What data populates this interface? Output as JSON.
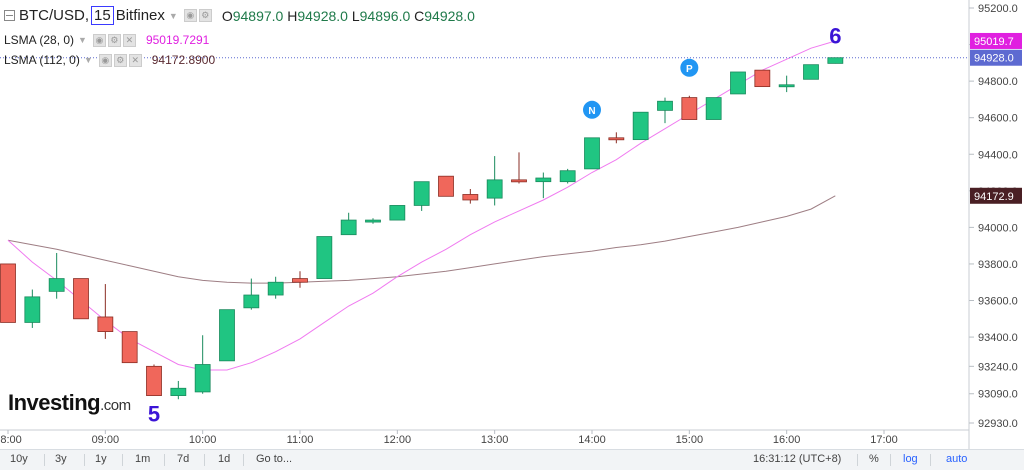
{
  "legend": {
    "symbol": "BTC/USD,",
    "interval": "15",
    "exchange": "Bitfinex",
    "o_label": "O",
    "o_val": "94897.0",
    "h_label": "H",
    "h_val": "94928.0",
    "l_label": "L",
    "l_val": "94896.0",
    "c_label": "C",
    "c_val": "94928.0",
    "lsma1_label": "LSMA (28, 0)",
    "lsma1_val": "95019.7291",
    "lsma2_label": "LSMA (112, 0)",
    "lsma2_val": "94172.8900"
  },
  "chart_data": {
    "type": "candlestick",
    "x_ticks": [
      "08:00",
      "09:00",
      "10:00",
      "11:00",
      "12:00",
      "13:00",
      "14:00",
      "15:00",
      "16:00",
      "17:00"
    ],
    "y_ticks": [
      "95200.0",
      "95000.0",
      "94800.0",
      "94600.0",
      "94400.0",
      "94200.0",
      "94000.0",
      "93800.0",
      "93600.0",
      "93400.0",
      "93240.0",
      "93090.0",
      "92930.0"
    ],
    "y_tick_values": [
      95200,
      95000,
      94800,
      94600,
      94400,
      94200,
      94000,
      93800,
      93600,
      93400,
      93240,
      93090,
      92930
    ],
    "ylim": [
      92930,
      95200
    ],
    "candles": [
      {
        "o": 93800,
        "h": 93800,
        "l": 93480,
        "c": 93480
      },
      {
        "o": 93480,
        "h": 93660,
        "l": 93450,
        "c": 93620
      },
      {
        "o": 93650,
        "h": 93860,
        "l": 93610,
        "c": 93720
      },
      {
        "o": 93720,
        "h": 93720,
        "l": 93500,
        "c": 93500
      },
      {
        "o": 93510,
        "h": 93690,
        "l": 93390,
        "c": 93430
      },
      {
        "o": 93430,
        "h": 93430,
        "l": 93260,
        "c": 93260
      },
      {
        "o": 93240,
        "h": 93250,
        "l": 93080,
        "c": 93080
      },
      {
        "o": 93080,
        "h": 93160,
        "l": 93060,
        "c": 93120
      },
      {
        "o": 93100,
        "h": 93410,
        "l": 93090,
        "c": 93250
      },
      {
        "o": 93270,
        "h": 93550,
        "l": 93270,
        "c": 93550
      },
      {
        "o": 93560,
        "h": 93720,
        "l": 93550,
        "c": 93630
      },
      {
        "o": 93630,
        "h": 93730,
        "l": 93610,
        "c": 93700
      },
      {
        "o": 93720,
        "h": 93760,
        "l": 93670,
        "c": 93700
      },
      {
        "o": 93720,
        "h": 93950,
        "l": 93720,
        "c": 93950
      },
      {
        "o": 93960,
        "h": 94080,
        "l": 93960,
        "c": 94040
      },
      {
        "o": 94040,
        "h": 94050,
        "l": 94020,
        "c": 94040
      },
      {
        "o": 94040,
        "h": 94120,
        "l": 94040,
        "c": 94120
      },
      {
        "o": 94120,
        "h": 94250,
        "l": 94090,
        "c": 94250
      },
      {
        "o": 94280,
        "h": 94280,
        "l": 94170,
        "c": 94170
      },
      {
        "o": 94180,
        "h": 94210,
        "l": 94130,
        "c": 94150
      },
      {
        "o": 94160,
        "h": 94390,
        "l": 94120,
        "c": 94260
      },
      {
        "o": 94260,
        "h": 94410,
        "l": 94240,
        "c": 94250
      },
      {
        "o": 94250,
        "h": 94300,
        "l": 94160,
        "c": 94270
      },
      {
        "o": 94250,
        "h": 94320,
        "l": 94240,
        "c": 94310
      },
      {
        "o": 94320,
        "h": 94490,
        "l": 94320,
        "c": 94490
      },
      {
        "o": 94490,
        "h": 94520,
        "l": 94460,
        "c": 94480
      },
      {
        "o": 94480,
        "h": 94630,
        "l": 94480,
        "c": 94630
      },
      {
        "o": 94640,
        "h": 94710,
        "l": 94570,
        "c": 94690
      },
      {
        "o": 94710,
        "h": 94720,
        "l": 94590,
        "c": 94590
      },
      {
        "o": 94590,
        "h": 94710,
        "l": 94590,
        "c": 94710
      },
      {
        "o": 94730,
        "h": 94850,
        "l": 94730,
        "c": 94850
      },
      {
        "o": 94860,
        "h": 94860,
        "l": 94770,
        "c": 94770
      },
      {
        "o": 94770,
        "h": 94830,
        "l": 94740,
        "c": 94780
      },
      {
        "o": 94810,
        "h": 94890,
        "l": 94810,
        "c": 94890
      },
      {
        "o": 94897,
        "h": 94928,
        "l": 94896,
        "c": 94928
      }
    ],
    "lsma_28": [
      93930,
      93810,
      93710,
      93600,
      93490,
      93390,
      93320,
      93250,
      93220,
      93220,
      93260,
      93320,
      93390,
      93480,
      93570,
      93640,
      93730,
      93810,
      93880,
      93960,
      94030,
      94090,
      94150,
      94220,
      94300,
      94370,
      94460,
      94540,
      94620,
      94700,
      94780,
      94860,
      94920,
      94980,
      95019.7
    ],
    "lsma_112": [
      93930,
      93905,
      93880,
      93850,
      93820,
      93790,
      93760,
      93730,
      93710,
      93700,
      93695,
      93695,
      93700,
      93705,
      93710,
      93720,
      93730,
      93745,
      93760,
      93780,
      93800,
      93820,
      93840,
      93855,
      93870,
      93890,
      93905,
      93925,
      93950,
      93975,
      94000,
      94030,
      94060,
      94100,
      94172.9
    ],
    "last_price_label": "94928.0",
    "last_price": 94928,
    "lsma1_label": "95019.7",
    "lsma1_price": 95019.7,
    "lsma2_label": "94172.9",
    "lsma2_price": 94172.9,
    "annotations": [
      {
        "text": "5",
        "at_candle": 6
      },
      {
        "text": "6",
        "at_candle": 34
      }
    ],
    "badges": [
      {
        "text": "N",
        "at_candle": 24
      },
      {
        "text": "P",
        "at_candle": 28
      }
    ],
    "colors": {
      "up": "#20c582",
      "down": "#f0675b",
      "up_border": "#1a8a5d",
      "down_border": "#8a2d24",
      "lsma28": "#f07af0",
      "lsma112": "#9e7e84",
      "price_line": "#5d6ad1",
      "badge": "#2196f3",
      "annotation": "#3b14d6"
    }
  },
  "brand": {
    "name": "Investing",
    "suffix": ".com"
  },
  "bottom_bar": {
    "ranges": [
      "10y",
      "3y",
      "1y",
      "1m",
      "7d",
      "1d"
    ],
    "goto": "Go to...",
    "time": "16:31:12 (UTC+8)",
    "percent": "%",
    "log": "log",
    "auto": "auto"
  }
}
